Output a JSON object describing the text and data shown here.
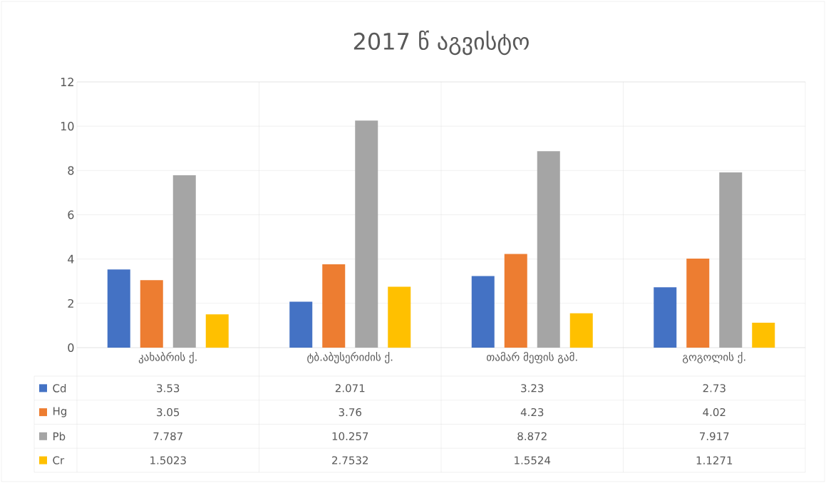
{
  "chart_data": {
    "type": "bar",
    "title": "2017 წ აგვისტო",
    "categories": [
      "კახაბრის ქ.",
      "ტბ.აბუსერიძის ქ.",
      "თამარ მეფის გამ.",
      "გოგოლის  ქ."
    ],
    "series": [
      {
        "name": "Cd",
        "color": "#4472c4",
        "values": [
          3.53,
          2.071,
          3.23,
          2.73
        ]
      },
      {
        "name": "Hg",
        "color": "#ed7d31",
        "values": [
          3.05,
          3.76,
          4.23,
          4.02
        ]
      },
      {
        "name": "Pb",
        "color": "#a5a5a5",
        "values": [
          7.787,
          10.257,
          8.872,
          7.917
        ]
      },
      {
        "name": "Cr",
        "color": "#ffc000",
        "values": [
          1.5023,
          2.7532,
          1.5524,
          1.1271
        ]
      }
    ],
    "ylim": [
      0,
      12
    ],
    "yticks": [
      0,
      2,
      4,
      6,
      8,
      10,
      12
    ],
    "grid": "y",
    "legend": "left",
    "data_labels": true
  }
}
